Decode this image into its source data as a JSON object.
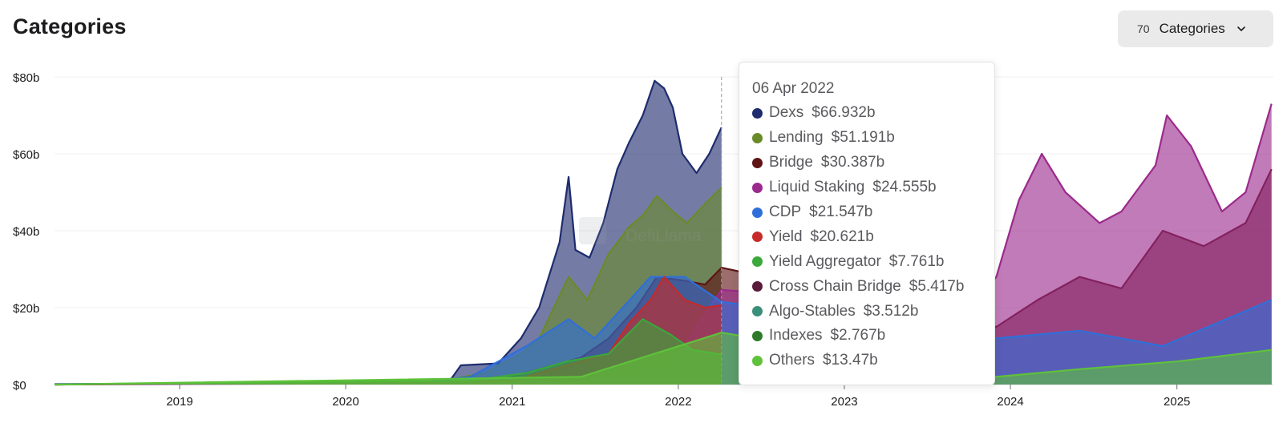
{
  "header": {
    "title": "Categories",
    "category_count": "70",
    "category_button_label": "Categories"
  },
  "watermark": "DefiLlama",
  "tooltip": {
    "date": "06 Apr 2022",
    "items": [
      {
        "name": "Dexs",
        "value": "$66.932b",
        "color": "#1e2c6e"
      },
      {
        "name": "Lending",
        "value": "$51.191b",
        "color": "#6a8a2a"
      },
      {
        "name": "Bridge",
        "value": "$30.387b",
        "color": "#5e1414"
      },
      {
        "name": "Liquid Staking",
        "value": "$24.555b",
        "color": "#9b2a8c"
      },
      {
        "name": "CDP",
        "value": "$21.547b",
        "color": "#2f6fd9"
      },
      {
        "name": "Yield",
        "value": "$20.621b",
        "color": "#c62a2a"
      },
      {
        "name": "Yield Aggregator",
        "value": "$7.761b",
        "color": "#3aa83a"
      },
      {
        "name": "Cross Chain Bridge",
        "value": "$5.417b",
        "color": "#5a1a3a"
      },
      {
        "name": "Algo-Stables",
        "value": "$3.512b",
        "color": "#3a8f7a"
      },
      {
        "name": "Indexes",
        "value": "$2.767b",
        "color": "#2f7a2a"
      },
      {
        "name": "Others",
        "value": "$13.47b",
        "color": "#5fc23a"
      }
    ]
  },
  "chart_data": {
    "type": "line",
    "y_ticks": [
      "$0",
      "$20b",
      "$40b",
      "$60b",
      "$80b"
    ],
    "y_tick_values": [
      0,
      20,
      40,
      60,
      80
    ],
    "ylim": [
      0,
      80
    ],
    "x_tick_labels": [
      "2019",
      "2020",
      "2021",
      "2022",
      "2023",
      "2024",
      "2025"
    ],
    "x_tick_dates": [
      "2019-01-01",
      "2020-01-01",
      "2021-01-01",
      "2022-01-01",
      "2023-01-01",
      "2024-01-01",
      "2025-01-01"
    ],
    "xlim": [
      "2018-04-01",
      "2025-08-01"
    ],
    "grid": true,
    "crosshair_date": "2022-04-06",
    "series": [
      {
        "name": "Dexs",
        "color": "#1e2c6e",
        "points": [
          [
            "2018-04-01",
            0.1
          ],
          [
            "2020-06-01",
            0.5
          ],
          [
            "2020-08-20",
            1.5
          ],
          [
            "2020-09-10",
            5
          ],
          [
            "2020-12-01",
            5.5
          ],
          [
            "2021-01-20",
            12
          ],
          [
            "2021-03-01",
            20
          ],
          [
            "2021-04-15",
            37
          ],
          [
            "2021-05-05",
            54
          ],
          [
            "2021-05-20",
            35
          ],
          [
            "2021-06-20",
            33
          ],
          [
            "2021-07-20",
            42
          ],
          [
            "2021-08-20",
            56
          ],
          [
            "2021-09-15",
            63
          ],
          [
            "2021-10-15",
            70
          ],
          [
            "2021-11-10",
            79
          ],
          [
            "2021-12-01",
            77
          ],
          [
            "2021-12-20",
            72
          ],
          [
            "2022-01-10",
            60
          ],
          [
            "2022-02-10",
            55
          ],
          [
            "2022-03-10",
            60
          ],
          [
            "2022-04-06",
            66.9
          ]
        ]
      },
      {
        "name": "Lending",
        "color": "#6a8a2a",
        "points": [
          [
            "2018-04-01",
            0.05
          ],
          [
            "2020-08-01",
            1
          ],
          [
            "2020-11-01",
            3
          ],
          [
            "2021-01-20",
            8
          ],
          [
            "2021-03-01",
            12
          ],
          [
            "2021-05-05",
            28
          ],
          [
            "2021-06-15",
            22
          ],
          [
            "2021-08-01",
            34
          ],
          [
            "2021-09-15",
            41
          ],
          [
            "2021-10-15",
            44
          ],
          [
            "2021-11-15",
            49
          ],
          [
            "2021-12-20",
            45
          ],
          [
            "2022-01-20",
            42
          ],
          [
            "2022-03-01",
            47
          ],
          [
            "2022-04-06",
            51.2
          ]
        ]
      },
      {
        "name": "Bridge",
        "color": "#5e1414",
        "points": [
          [
            "2018-04-01",
            0
          ],
          [
            "2020-12-01",
            1
          ],
          [
            "2021-03-01",
            4
          ],
          [
            "2021-06-01",
            7
          ],
          [
            "2021-08-01",
            12
          ],
          [
            "2021-10-01",
            20
          ],
          [
            "2021-11-15",
            28
          ],
          [
            "2022-01-15",
            27
          ],
          [
            "2022-03-01",
            26
          ],
          [
            "2022-04-06",
            30.4
          ],
          [
            "2023-12-01",
            15
          ],
          [
            "2024-03-01",
            22
          ],
          [
            "2024-06-01",
            28
          ],
          [
            "2024-09-01",
            25
          ],
          [
            "2024-12-01",
            40
          ],
          [
            "2025-03-01",
            36
          ],
          [
            "2025-06-01",
            42
          ],
          [
            "2025-07-28",
            56
          ]
        ]
      },
      {
        "name": "Liquid Staking",
        "color": "#9b2a8c",
        "points": [
          [
            "2018-04-01",
            0
          ],
          [
            "2021-06-01",
            0.5
          ],
          [
            "2021-12-01",
            3
          ],
          [
            "2022-04-06",
            24.6
          ],
          [
            "2023-10-01",
            20
          ],
          [
            "2023-12-01",
            28
          ],
          [
            "2024-01-20",
            48
          ],
          [
            "2024-03-10",
            60
          ],
          [
            "2024-05-01",
            50
          ],
          [
            "2024-07-15",
            42
          ],
          [
            "2024-09-01",
            45
          ],
          [
            "2024-11-15",
            57
          ],
          [
            "2024-12-10",
            70
          ],
          [
            "2025-02-01",
            62
          ],
          [
            "2025-04-10",
            45
          ],
          [
            "2025-06-01",
            50
          ],
          [
            "2025-07-28",
            73
          ]
        ]
      },
      {
        "name": "CDP",
        "color": "#2f6fd9",
        "points": [
          [
            "2018-04-01",
            0.1
          ],
          [
            "2020-06-01",
            0.5
          ],
          [
            "2020-10-01",
            2
          ],
          [
            "2021-02-01",
            10
          ],
          [
            "2021-05-05",
            17
          ],
          [
            "2021-07-01",
            12
          ],
          [
            "2021-09-01",
            20
          ],
          [
            "2021-11-01",
            28
          ],
          [
            "2022-01-15",
            28
          ],
          [
            "2022-04-06",
            21.5
          ],
          [
            "2023-12-01",
            12
          ],
          [
            "2024-06-01",
            14
          ],
          [
            "2024-12-01",
            10
          ],
          [
            "2025-07-28",
            22
          ]
        ]
      },
      {
        "name": "Yield",
        "color": "#c62a2a",
        "points": [
          [
            "2018-04-01",
            0
          ],
          [
            "2021-01-01",
            1
          ],
          [
            "2021-03-01",
            3
          ],
          [
            "2021-06-01",
            6
          ],
          [
            "2021-08-01",
            8
          ],
          [
            "2021-09-15",
            16
          ],
          [
            "2021-11-01",
            22
          ],
          [
            "2021-12-01",
            28
          ],
          [
            "2022-01-15",
            22
          ],
          [
            "2022-03-01",
            20
          ],
          [
            "2022-04-06",
            20.6
          ]
        ]
      },
      {
        "name": "Yield Aggregator",
        "color": "#3aa83a",
        "points": [
          [
            "2018-04-01",
            0
          ],
          [
            "2020-10-01",
            1
          ],
          [
            "2021-02-01",
            3
          ],
          [
            "2021-05-01",
            6
          ],
          [
            "2021-08-01",
            8
          ],
          [
            "2021-10-15",
            17
          ],
          [
            "2021-12-15",
            13
          ],
          [
            "2022-02-01",
            9
          ],
          [
            "2022-04-06",
            7.8
          ]
        ]
      },
      {
        "name": "Others",
        "color": "#5fc23a",
        "points": [
          [
            "2018-04-01",
            0
          ],
          [
            "2021-06-01",
            2
          ],
          [
            "2022-04-06",
            13.5
          ],
          [
            "2023-12-01",
            2
          ],
          [
            "2024-06-01",
            4
          ],
          [
            "2025-01-01",
            6
          ],
          [
            "2025-07-28",
            9
          ]
        ]
      }
    ]
  }
}
